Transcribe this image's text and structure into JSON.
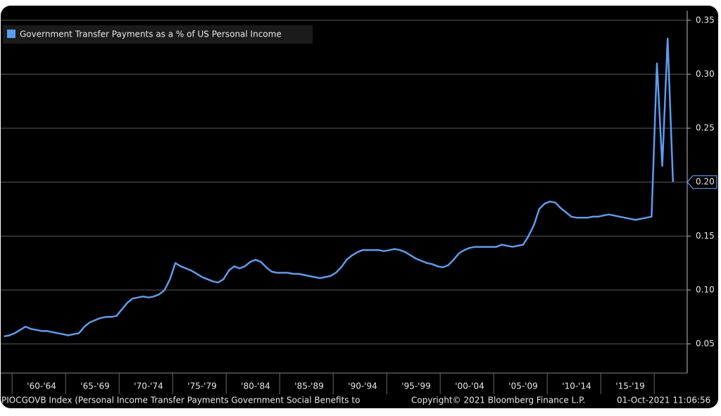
{
  "chart_data": {
    "type": "line",
    "categories": [
      null,
      null,
      null,
      null,
      null,
      null,
      null,
      "'60-'64",
      null,
      null,
      null,
      null,
      null,
      null,
      null,
      null,
      null,
      "'65-'69",
      null,
      null,
      null,
      null,
      null,
      null,
      null,
      null,
      null,
      "'70-'74",
      null,
      null,
      null,
      null,
      null,
      null,
      null,
      null,
      null,
      "'75-'79",
      null,
      null,
      null,
      null,
      null,
      null,
      null,
      null,
      null,
      "'80-'84",
      null,
      null,
      null,
      null,
      null,
      null,
      null,
      null,
      null,
      "'85-'89",
      null,
      null,
      null,
      null,
      null,
      null,
      null,
      null,
      null,
      "'90-'94",
      null,
      null,
      null,
      null,
      null,
      null,
      null,
      null,
      null,
      "'95-'99",
      null,
      null,
      null,
      null,
      null,
      null,
      null,
      null,
      null,
      "'00-'04",
      null,
      null,
      null,
      null,
      null,
      null,
      null,
      null,
      null,
      "'05-'09",
      null,
      null,
      null,
      null,
      null,
      null,
      null,
      null,
      null,
      "'10-'14",
      null,
      null,
      null,
      null,
      null,
      null,
      null,
      null,
      null,
      "'15-'19",
      null,
      null,
      null,
      null,
      null,
      null,
      null,
      null
    ],
    "series": [
      {
        "name": "Government Transfer Payments as a % of US Personal Income",
        "color": "#5b9cf0",
        "values": [
          0.057,
          0.058,
          0.06,
          0.063,
          0.066,
          0.064,
          0.063,
          0.062,
          0.062,
          0.061,
          0.06,
          0.059,
          0.058,
          0.059,
          0.06,
          0.066,
          0.07,
          0.072,
          0.074,
          0.075,
          0.075,
          0.076,
          0.082,
          0.088,
          0.092,
          0.093,
          0.094,
          0.093,
          0.094,
          0.096,
          0.1,
          0.11,
          0.125,
          0.122,
          0.12,
          0.118,
          0.115,
          0.112,
          0.11,
          0.108,
          0.107,
          0.11,
          0.118,
          0.122,
          0.12,
          0.122,
          0.126,
          0.128,
          0.126,
          0.121,
          0.117,
          0.116,
          0.116,
          0.116,
          0.115,
          0.115,
          0.114,
          0.113,
          0.112,
          0.111,
          0.112,
          0.113,
          0.116,
          0.121,
          0.128,
          0.132,
          0.135,
          0.137,
          0.137,
          0.137,
          0.137,
          0.136,
          0.137,
          0.138,
          0.137,
          0.135,
          0.132,
          0.129,
          0.127,
          0.125,
          0.124,
          0.122,
          0.121,
          0.123,
          0.128,
          0.134,
          0.137,
          0.139,
          0.14,
          0.14,
          0.14,
          0.14,
          0.14,
          0.142,
          0.141,
          0.14,
          0.141,
          0.142,
          0.15,
          0.16,
          0.175,
          0.18,
          0.182,
          0.181,
          0.176,
          0.172,
          0.168,
          0.167,
          0.167,
          0.167,
          0.168,
          0.168,
          0.169,
          0.17,
          0.169,
          0.168,
          0.167,
          0.166,
          0.165,
          0.166,
          0.167,
          0.168,
          0.31,
          0.215,
          0.333,
          0.2
        ]
      }
    ],
    "current_value_label": "0.20",
    "ylim": [
      0.023,
      0.359
    ],
    "yticks": [
      0.05,
      {
        "value": 0.1,
        "label": "0.10"
      },
      0.15,
      {
        "value": 0.2,
        "label": "0.20"
      },
      0.25,
      {
        "value": 0.3,
        "label": "0.30"
      },
      0.35
    ],
    "grid": true,
    "footer": {
      "index": "PIOCGOVB Index (Personal Income Transfer Payments Government Social Benefits to",
      "copyright": "Copyright© 2021 Bloomberg Finance L.P.",
      "timestamp": "01-Oct-2021 11:06:56"
    }
  }
}
